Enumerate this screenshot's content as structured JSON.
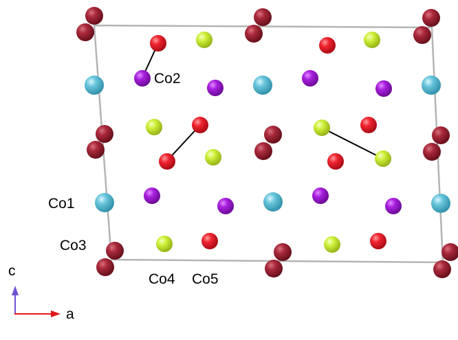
{
  "colors": {
    "cell_edge": "#b4b4b4",
    "bond": "#000000",
    "atom_types": {
      "dark_red": "#8e1a2c",
      "red": "#e0202c",
      "yellow_green": "#c8ea2a",
      "purple": "#a018d4",
      "cyan": "#5cbcd2"
    },
    "axis_c": "#7050d8",
    "axis_a": "#e01818"
  },
  "site_labels": [
    "Co1",
    "Co2",
    "Co3",
    "Co4",
    "Co5"
  ],
  "axes": {
    "vertical": "c",
    "horizontal": "a"
  }
}
